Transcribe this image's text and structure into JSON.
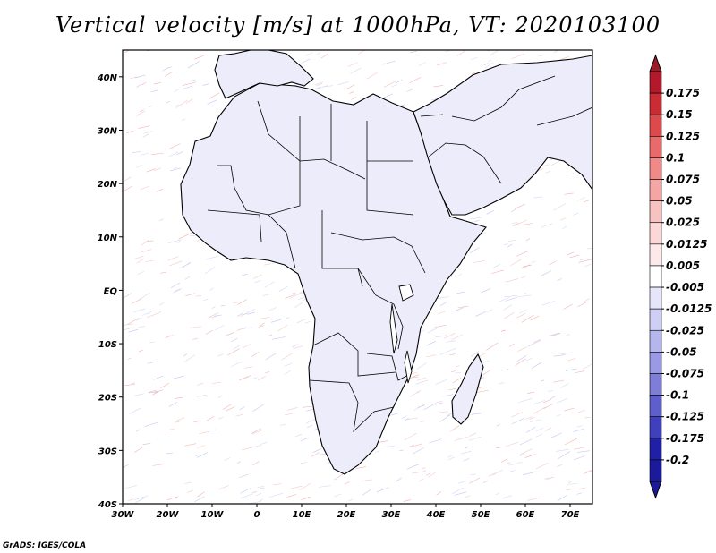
{
  "title": "Vertical velocity [m/s] at 1000hPa, VT: 2020103100",
  "credit": "GrADS: IGES/COLA",
  "map": {
    "lon_range": [
      -30,
      75
    ],
    "lat_range": [
      -40,
      45
    ],
    "lat_ticks": [
      {
        "value": 40,
        "label": "40N"
      },
      {
        "value": 30,
        "label": "30N"
      },
      {
        "value": 20,
        "label": "20N"
      },
      {
        "value": 10,
        "label": "10N"
      },
      {
        "value": 0,
        "label": "EQ"
      },
      {
        "value": -10,
        "label": "10S"
      },
      {
        "value": -20,
        "label": "20S"
      },
      {
        "value": -30,
        "label": "30S"
      },
      {
        "value": -40,
        "label": "40S"
      }
    ],
    "lon_ticks": [
      {
        "value": -30,
        "label": "30W"
      },
      {
        "value": -20,
        "label": "20W"
      },
      {
        "value": -10,
        "label": "10W"
      },
      {
        "value": 0,
        "label": "0"
      },
      {
        "value": 10,
        "label": "10E"
      },
      {
        "value": 20,
        "label": "20E"
      },
      {
        "value": 30,
        "label": "30E"
      },
      {
        "value": 40,
        "label": "40E"
      },
      {
        "value": 50,
        "label": "50E"
      },
      {
        "value": 60,
        "label": "60E"
      },
      {
        "value": 70,
        "label": "70E"
      }
    ]
  },
  "colorbar": {
    "levels": [
      {
        "label": "0.175",
        "color": "#b3182b"
      },
      {
        "label": "0.15",
        "color": "#c92c33"
      },
      {
        "label": "0.125",
        "color": "#dc4a4c"
      },
      {
        "label": "0.1",
        "color": "#e86a6a"
      },
      {
        "label": "0.075",
        "color": "#ef8a88"
      },
      {
        "label": "0.05",
        "color": "#f4a6a5"
      },
      {
        "label": "0.025",
        "color": "#f8c2c1"
      },
      {
        "label": "0.0125",
        "color": "#fbd8d7"
      },
      {
        "label": "0.005",
        "color": "#fde9e9"
      },
      {
        "label": "-0.005",
        "color": "#ffffff"
      },
      {
        "label": "-0.0125",
        "color": "#e6e6fb"
      },
      {
        "label": "-0.025",
        "color": "#cfcff5"
      },
      {
        "label": "-0.05",
        "color": "#b6b6ee"
      },
      {
        "label": "-0.075",
        "color": "#9a9ae4"
      },
      {
        "label": "-0.1",
        "color": "#7e7ed8"
      },
      {
        "label": "-0.125",
        "color": "#5f5fcb"
      },
      {
        "label": "-0.175",
        "color": "#4040bc"
      },
      {
        "label": "-0.2",
        "color": "#2020a6"
      }
    ],
    "top_color": "#9e1a26",
    "bottom_color": "#1a1a9a"
  }
}
